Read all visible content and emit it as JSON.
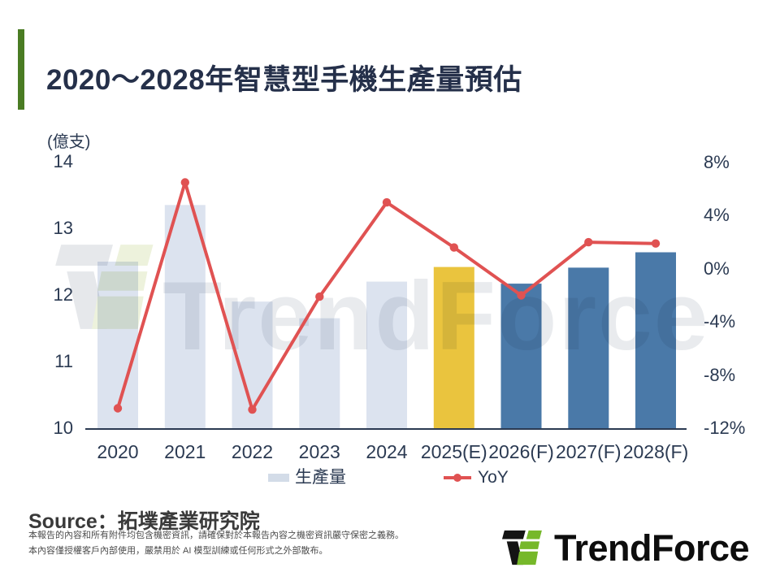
{
  "header": {
    "title": "2020～2028年智慧型手機生產量預估"
  },
  "chart_data": {
    "type": "combo_bar_line",
    "title": "2020～2028年智慧型手機生產量預估",
    "categories": [
      "2020",
      "2021",
      "2022",
      "2023",
      "2024",
      "2025(E)",
      "2026(F)",
      "2027(F)",
      "2028(F)"
    ],
    "series": [
      {
        "name": "生產量",
        "type": "bar",
        "axis": "left",
        "unit": "億支",
        "values": [
          12.5,
          13.35,
          11.9,
          11.65,
          12.2,
          12.42,
          12.17,
          12.41,
          12.64
        ],
        "bar_colors": [
          "#dce3ef",
          "#dce3ef",
          "#dce3ef",
          "#dce3ef",
          "#dce3ef",
          "#eac43e",
          "#4a79a8",
          "#4a79a8",
          "#4a79a8"
        ]
      },
      {
        "name": "YoY",
        "type": "line",
        "axis": "right",
        "unit": "%",
        "values": [
          -10.5,
          6.5,
          -10.6,
          -2.1,
          5.0,
          1.6,
          -2.0,
          2.0,
          1.9
        ],
        "color": "#e05252"
      }
    ],
    "left_axis": {
      "label": "(億支)",
      "ticks": [
        14,
        13,
        12,
        11,
        10
      ],
      "min": 10,
      "max": 14
    },
    "right_axis": {
      "tick_values": [
        8,
        4,
        0,
        -4,
        -8,
        -12
      ],
      "tick_labels": [
        "8%",
        "4%",
        "0%",
        "-4%",
        "-8%",
        "-12%"
      ],
      "min": -12,
      "max": 8
    },
    "grid": false,
    "legend_position": "bottom",
    "legend": [
      {
        "label": "生產量",
        "swatch": "#d3dce8"
      },
      {
        "label": "YoY",
        "color": "#e05252"
      }
    ]
  },
  "watermark": {
    "text": "TrendForce"
  },
  "footer": {
    "source": "Source：拓墣產業研究院",
    "disclaimer_line1": "本報告的內容和所有附件均包含機密資訊，請確保對於本報告內容之機密資訊嚴守保密之義務。",
    "disclaimer_line2": "本內容僅授權客戶內部使用，嚴禁用於 AI 模型訓練或任何形式之外部散布。",
    "logo_text": "TrendForce"
  },
  "colors": {
    "accent_green": "#4a7c23",
    "title_text": "#25304a",
    "axis_text": "#2b3a52",
    "bar_base": "#dce3ef",
    "bar_estimate": "#eac43e",
    "bar_forecast": "#4a79a8",
    "yoy_line": "#e05252",
    "axis_line": "#2b3a52",
    "watermark_gray": "#e9ebee",
    "watermark_green": "#edf2dc",
    "logo_green": "#76b82a",
    "logo_black": "#141414"
  }
}
